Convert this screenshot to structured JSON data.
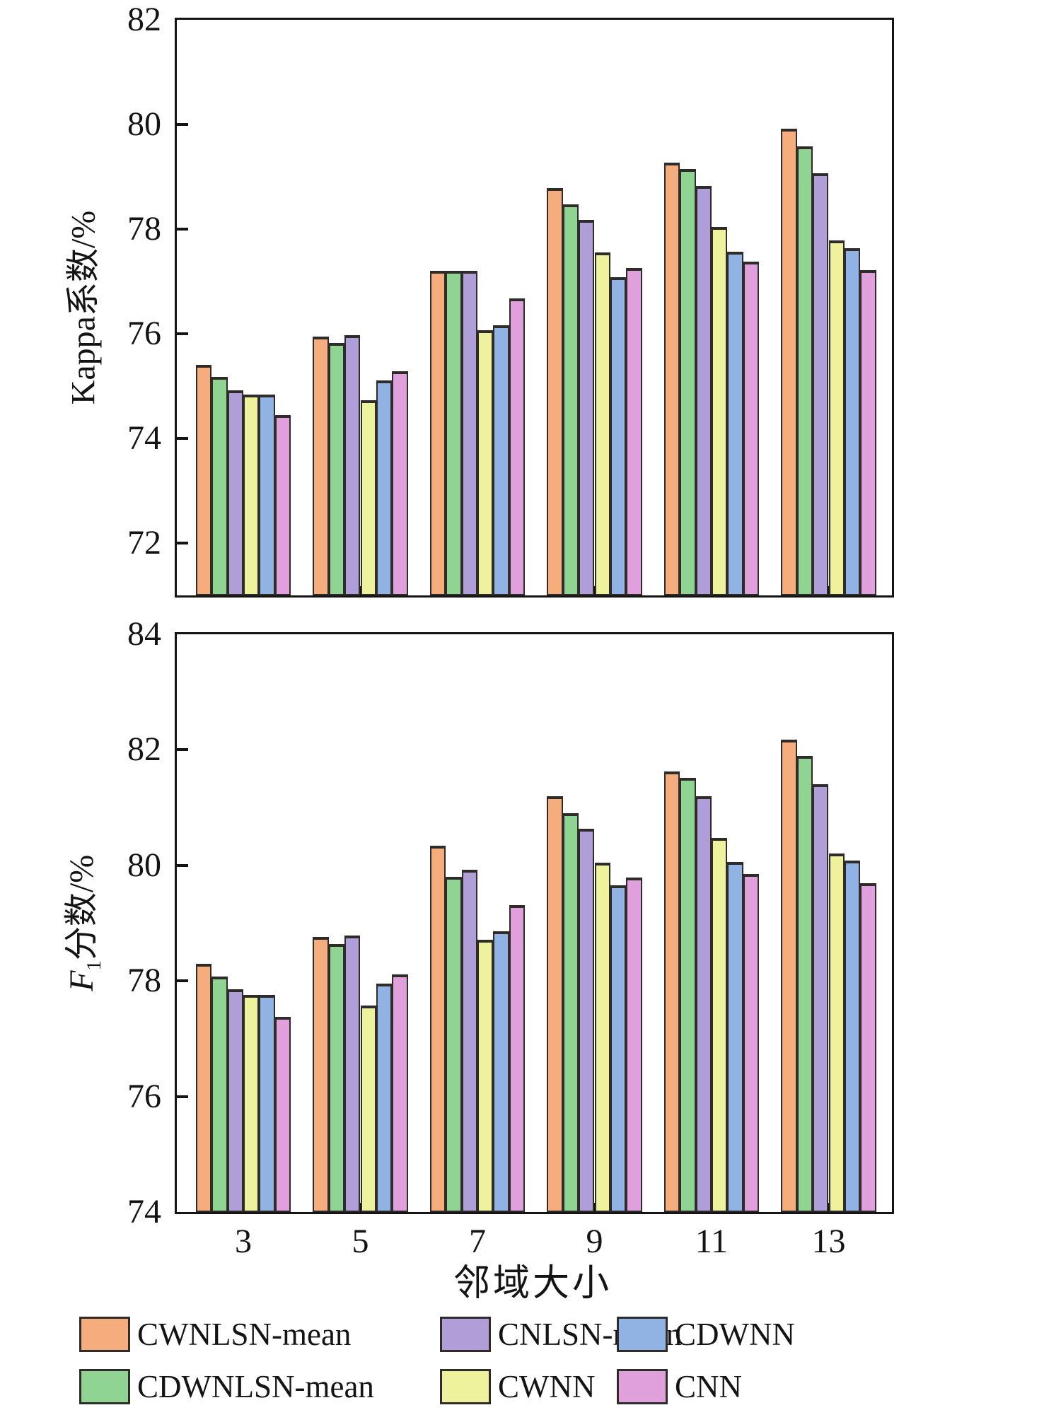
{
  "figure": {
    "background": "#ffffff",
    "frame_color": "#141414",
    "bar_edge_color": "#2e2b29",
    "xlabel": "邻域大小"
  },
  "chart_data": [
    {
      "type": "bar",
      "title": "",
      "ylabel": "Kappa系数/%",
      "xlabel": "",
      "categories": [
        "3",
        "5",
        "7",
        "9",
        "11",
        "13"
      ],
      "ylim": [
        71,
        82
      ],
      "yticks": [
        72,
        74,
        76,
        78,
        80,
        82
      ],
      "grid": false,
      "legend_position": "below-figure",
      "series": [
        {
          "name": "CWNLSN-mean",
          "color": "#F5AD7D",
          "values": [
            75.4,
            75.95,
            77.2,
            78.78,
            79.27,
            79.92
          ]
        },
        {
          "name": "CDWNLSN-mean",
          "color": "#90D493",
          "values": [
            75.18,
            75.82,
            77.2,
            78.47,
            79.15,
            79.58
          ]
        },
        {
          "name": "CNLSN-mean",
          "color": "#AF9ED7",
          "values": [
            74.92,
            75.97,
            77.2,
            78.17,
            78.83,
            79.07
          ]
        },
        {
          "name": "CWNN",
          "color": "#EEF29D",
          "values": [
            74.84,
            74.73,
            76.07,
            77.55,
            78.04,
            77.78
          ]
        },
        {
          "name": "CDWNN",
          "color": "#90B3E4",
          "values": [
            74.84,
            75.11,
            76.16,
            77.08,
            77.57,
            77.63
          ]
        },
        {
          "name": "CNN",
          "color": "#DFA0DC",
          "values": [
            74.44,
            75.29,
            76.67,
            77.26,
            77.38,
            77.21
          ]
        }
      ]
    },
    {
      "type": "bar",
      "title": "",
      "ylabel": "F1分数/%",
      "ylabel_parts": {
        "italic": "F",
        "sub": "1",
        "text": "分数/%"
      },
      "xlabel": "邻域大小",
      "categories": [
        "3",
        "5",
        "7",
        "9",
        "11",
        "13"
      ],
      "ylim": [
        74,
        84
      ],
      "yticks": [
        74,
        76,
        78,
        80,
        82,
        84
      ],
      "grid": false,
      "legend_position": "below-figure",
      "series": [
        {
          "name": "CWNLSN-mean",
          "color": "#F5AD7D",
          "values": [
            78.3,
            78.76,
            80.34,
            81.2,
            81.63,
            82.18
          ]
        },
        {
          "name": "CDWNLSN-mean",
          "color": "#90D493",
          "values": [
            78.07,
            78.64,
            79.8,
            80.9,
            81.52,
            81.89
          ]
        },
        {
          "name": "CNLSN-mean",
          "color": "#AF9ED7",
          "values": [
            77.85,
            78.79,
            79.92,
            80.63,
            81.2,
            81.41
          ]
        },
        {
          "name": "CWNN",
          "color": "#EEF29D",
          "values": [
            77.76,
            77.58,
            78.71,
            80.05,
            80.47,
            80.21
          ]
        },
        {
          "name": "CDWNN",
          "color": "#90B3E4",
          "values": [
            77.76,
            77.95,
            78.86,
            79.65,
            80.06,
            80.08
          ]
        },
        {
          "name": "CNN",
          "color": "#DFA0DC",
          "values": [
            77.38,
            78.11,
            79.31,
            79.79,
            79.85,
            79.69
          ]
        }
      ]
    }
  ],
  "legend": {
    "items": [
      {
        "label": "CWNLSN-mean",
        "color": "#F5AD7D"
      },
      {
        "label": "CDWNLSN-mean",
        "color": "#90D493"
      },
      {
        "label": "CNLSN-mean",
        "color": "#AF9ED7"
      },
      {
        "label": "CWNN",
        "color": "#EEF29D"
      },
      {
        "label": "CDWNN",
        "color": "#90B3E4"
      },
      {
        "label": "CNN",
        "color": "#DFA0DC"
      }
    ]
  }
}
